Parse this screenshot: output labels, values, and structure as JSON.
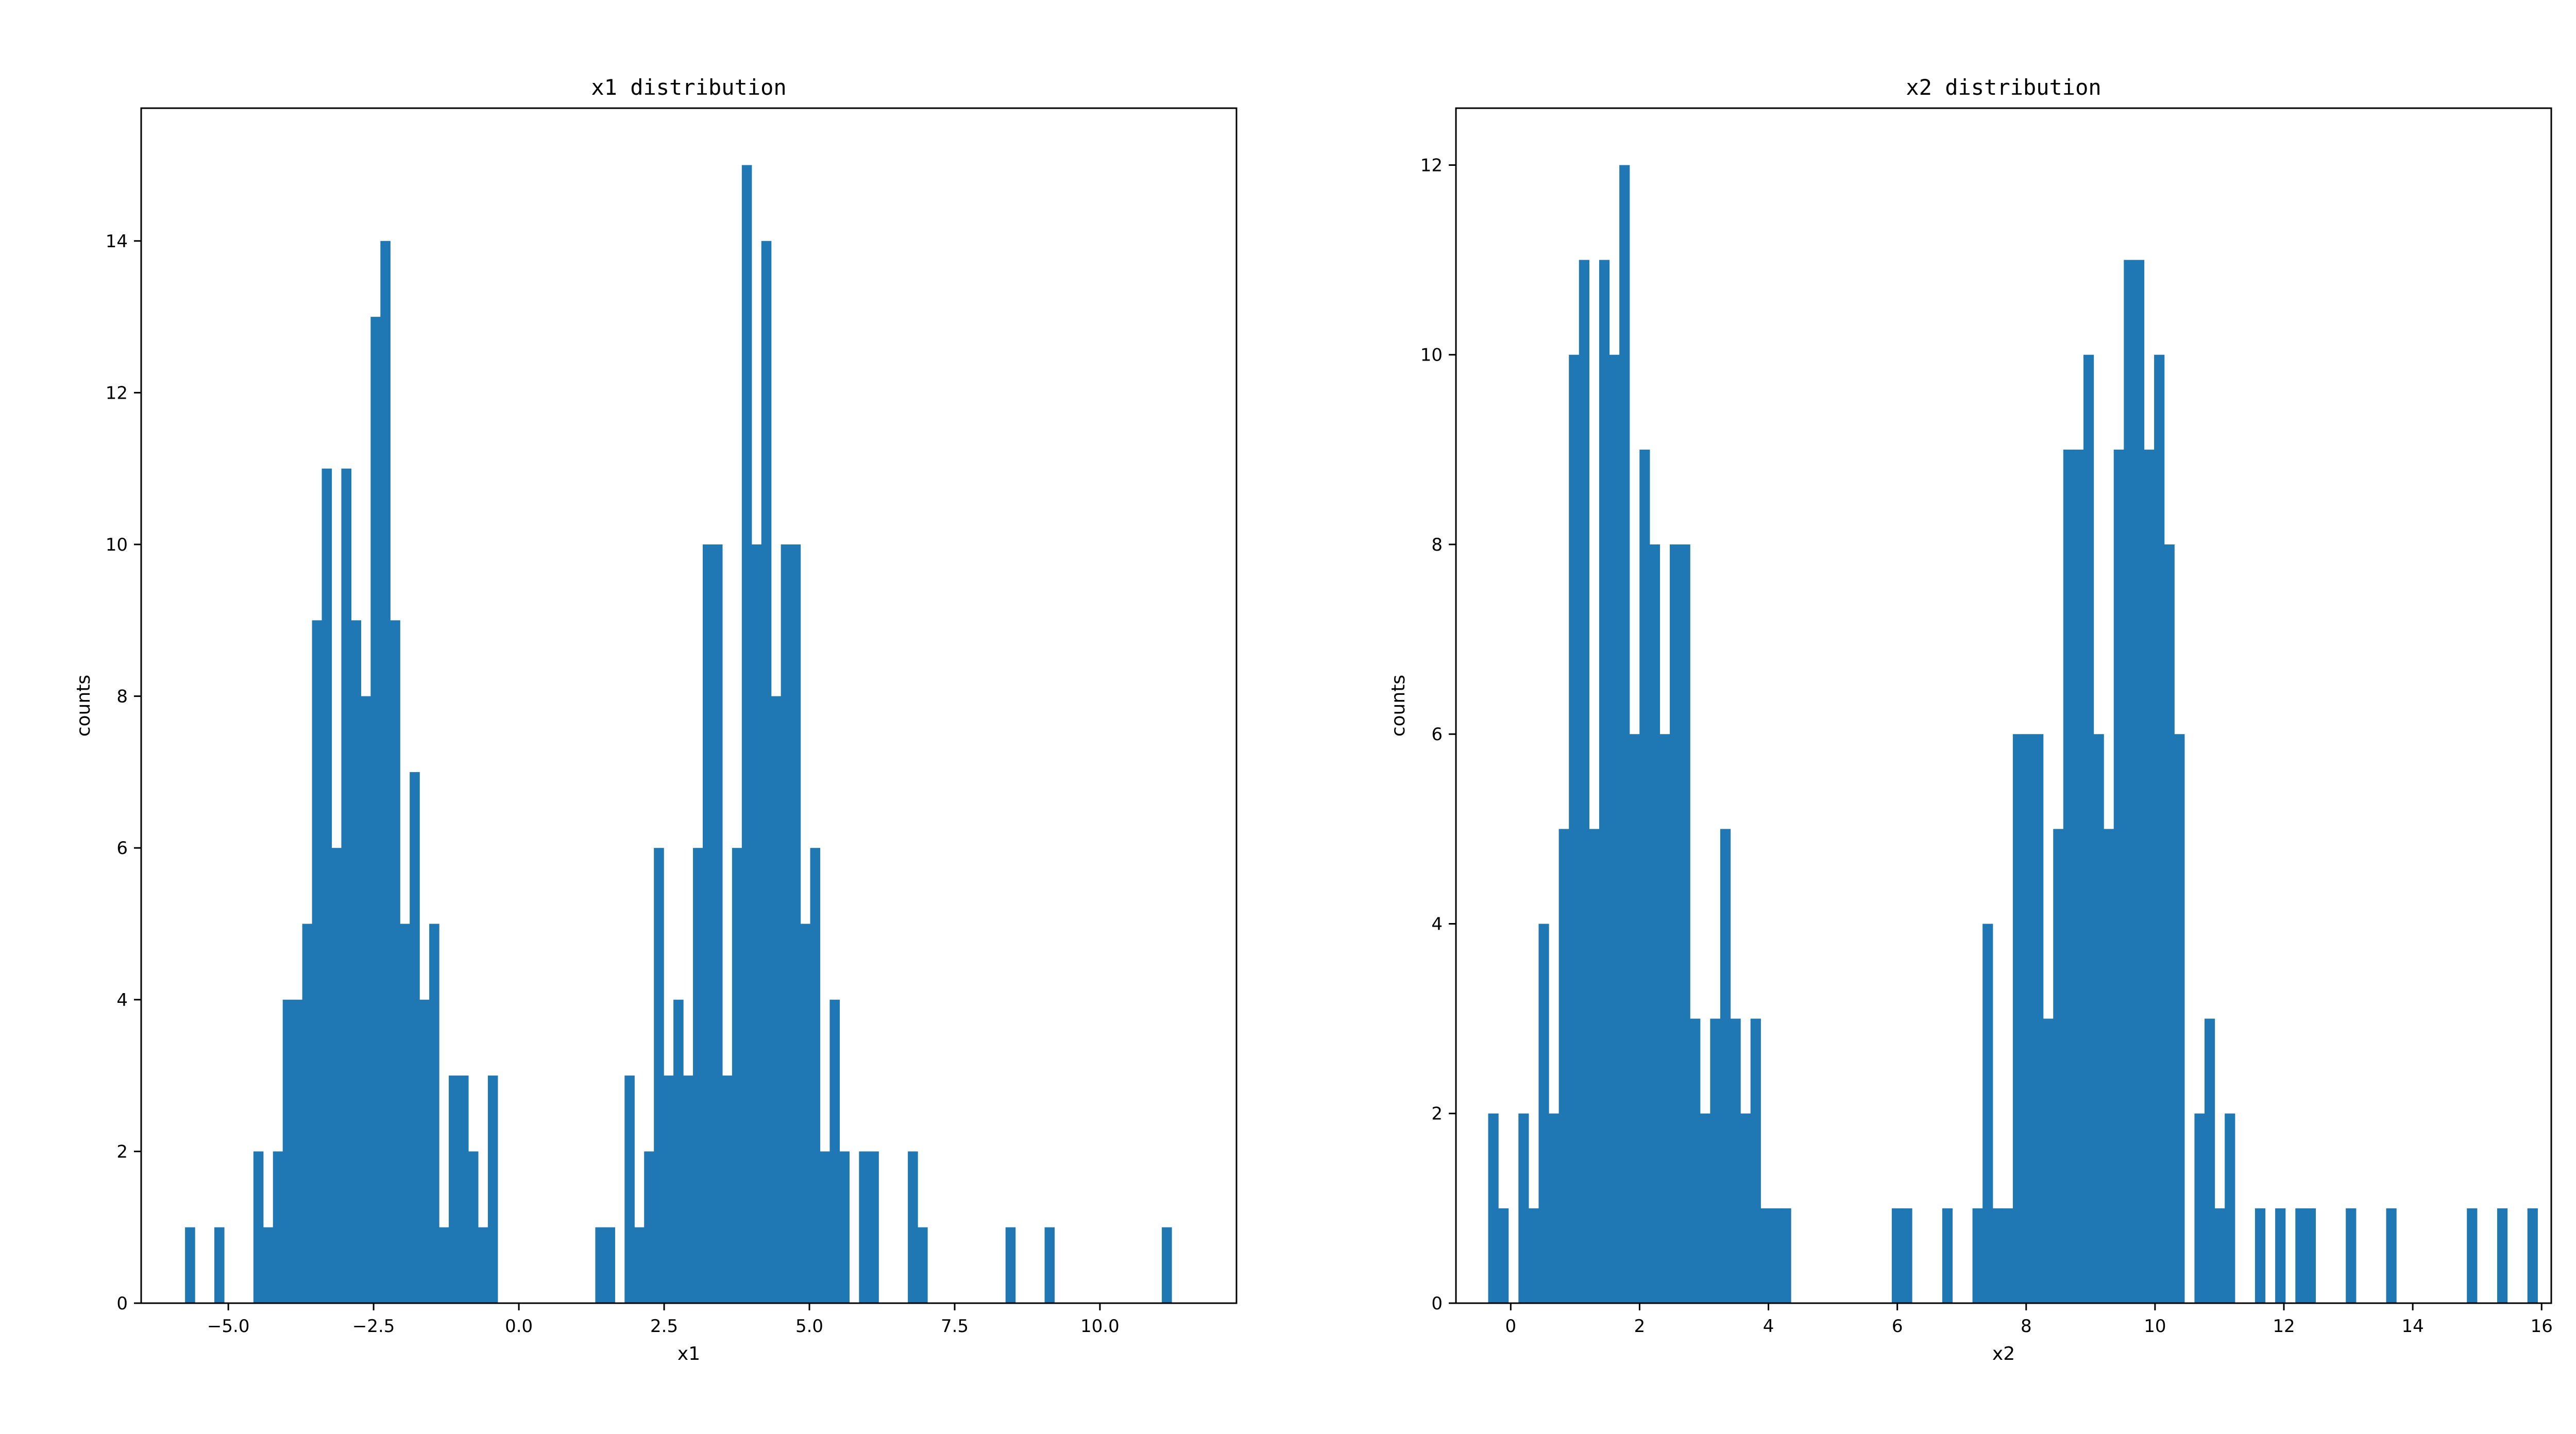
{
  "chart_data": [
    {
      "type": "bar",
      "title": "x1 distribution",
      "xlabel": "x1",
      "ylabel": "counts",
      "xlim": [
        -6.5,
        12.35
      ],
      "ylim": [
        0,
        15.75
      ],
      "xticks": [
        -5.0,
        -2.5,
        0.0,
        2.5,
        5.0,
        7.5,
        10.0
      ],
      "xtick_labels": [
        "−5.0",
        "−2.5",
        "0.0",
        "2.5",
        "5.0",
        "7.5",
        "10.0"
      ],
      "yticks": [
        0,
        2,
        4,
        6,
        8,
        10,
        12,
        14
      ],
      "ytick_labels": [
        "0",
        "2",
        "4",
        "6",
        "8",
        "10",
        "12",
        "14"
      ],
      "color": "#1f77b4",
      "bin_width": 0.1681,
      "bin_start": -5.745,
      "values": [
        1,
        0,
        0,
        1,
        0,
        0,
        0,
        2,
        1,
        2,
        4,
        4,
        5,
        9,
        11,
        6,
        11,
        9,
        8,
        13,
        14,
        9,
        5,
        7,
        4,
        5,
        1,
        3,
        3,
        2,
        1,
        3,
        0,
        0,
        0,
        0,
        0,
        0,
        0,
        0,
        0,
        0,
        1,
        1,
        0,
        3,
        1,
        2,
        6,
        3,
        4,
        3,
        6,
        10,
        10,
        3,
        6,
        15,
        10,
        14,
        8,
        10,
        10,
        5,
        6,
        2,
        4,
        2,
        0,
        2,
        2,
        0,
        0,
        0,
        2,
        1,
        0,
        0,
        0,
        0,
        0,
        0,
        0,
        0,
        1,
        0,
        0,
        0,
        1,
        0,
        0,
        0,
        0,
        0,
        0,
        0,
        0,
        0,
        0,
        0,
        1
      ]
    },
    {
      "type": "bar",
      "title": "x2 distribution",
      "xlabel": "x2",
      "ylabel": "counts",
      "xlim": [
        -0.85,
        16.15
      ],
      "ylim": [
        0,
        12.6
      ],
      "xticks": [
        0,
        2,
        4,
        6,
        8,
        10,
        12,
        14,
        16
      ],
      "xtick_labels": [
        "0",
        "2",
        "4",
        "6",
        "8",
        "10",
        "12",
        "14",
        "16"
      ],
      "yticks": [
        0,
        2,
        4,
        6,
        8,
        10,
        12
      ],
      "ytick_labels": [
        "0",
        "2",
        "4",
        "6",
        "8",
        "10",
        "12"
      ],
      "color": "#1f77b4",
      "bin_width": 0.1566,
      "bin_start": -0.35,
      "values": [
        2,
        1,
        0,
        2,
        1,
        4,
        2,
        5,
        10,
        11,
        5,
        11,
        10,
        12,
        6,
        9,
        8,
        6,
        8,
        8,
        3,
        2,
        3,
        5,
        3,
        2,
        3,
        1,
        1,
        1,
        0,
        0,
        0,
        0,
        0,
        0,
        0,
        0,
        0,
        0,
        1,
        1,
        0,
        0,
        0,
        1,
        0,
        0,
        1,
        4,
        1,
        1,
        6,
        6,
        6,
        3,
        5,
        9,
        9,
        10,
        6,
        5,
        9,
        11,
        11,
        9,
        10,
        8,
        6,
        0,
        2,
        3,
        1,
        2,
        0,
        0,
        1,
        0,
        1,
        0,
        1,
        1,
        0,
        0,
        0,
        1,
        0,
        0,
        0,
        1,
        0,
        0,
        0,
        0,
        0,
        0,
        0,
        1,
        0,
        0,
        1,
        0,
        0,
        1
      ]
    }
  ]
}
